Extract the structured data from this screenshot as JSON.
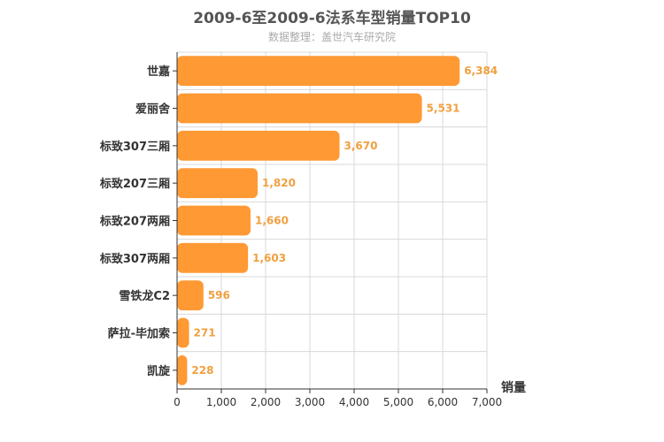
{
  "colors": {
    "bar": "#ff9933",
    "value_label": "#f0a040",
    "grid": "#d8d8d8",
    "axis": "#333333"
  },
  "chart_data": {
    "type": "bar",
    "orientation": "horizontal",
    "title": "2009-6至2009-6法系车型销量TOP10",
    "subtitle": "数据整理：盖世汽车研究院",
    "xlabel": "销量",
    "ylabel": "",
    "xlim": [
      0,
      7000
    ],
    "xticks": [
      0,
      1000,
      2000,
      3000,
      4000,
      5000,
      6000,
      7000
    ],
    "xtick_labels": [
      "0",
      "1,000",
      "2,000",
      "3,000",
      "4,000",
      "5,000",
      "6,000",
      "7,000"
    ],
    "grid": true,
    "categories": [
      "世嘉",
      "爱丽舍",
      "标致307三厢",
      "标致207三厢",
      "标致207两厢",
      "标致307两厢",
      "雪铁龙C2",
      "萨拉-毕加索",
      "凯旋"
    ],
    "values": [
      6384,
      5531,
      3670,
      1820,
      1660,
      1603,
      596,
      271,
      228
    ],
    "value_labels": [
      "6,384",
      "5,531",
      "3,670",
      "1,820",
      "1,660",
      "1,603",
      "596",
      "271",
      "228"
    ]
  }
}
